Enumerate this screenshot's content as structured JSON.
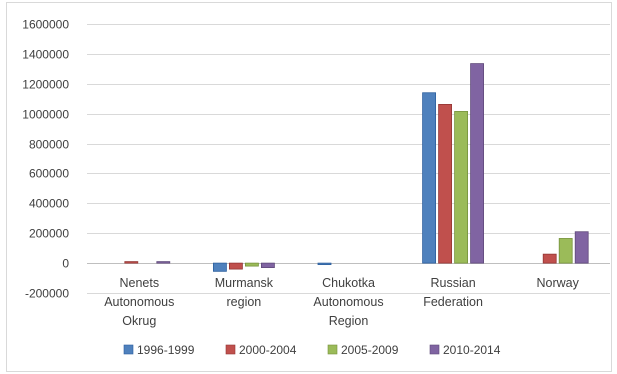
{
  "chart_data": {
    "type": "bar",
    "title": "",
    "xlabel": "",
    "ylabel": "",
    "ylim": [
      -200000,
      1600000
    ],
    "yticks": [
      -200000,
      0,
      200000,
      400000,
      600000,
      800000,
      1000000,
      1200000,
      1400000,
      1600000
    ],
    "ytick_labels": [
      "-200000",
      "0",
      "200000",
      "400000",
      "600000",
      "800000",
      "1000000",
      "1200000",
      "1400000",
      "1600000"
    ],
    "grid": true,
    "legend_position": "bottom",
    "categories": [
      [
        "Nenets",
        "Autonomous",
        "Okrug"
      ],
      [
        "Murmansk",
        "region"
      ],
      [
        "Chukotka",
        "Autonomous",
        "Region"
      ],
      [
        "Russian",
        "Federation"
      ],
      [
        "Norway"
      ]
    ],
    "series": [
      {
        "name": "1996-1999",
        "color": "#4f81bd",
        "border": "#2c5f9e",
        "values": [
          0,
          -55000,
          -8000,
          1140000,
          0
        ]
      },
      {
        "name": "2000-2004",
        "color": "#c0504d",
        "border": "#943634",
        "values": [
          5000,
          -40000,
          0,
          1062000,
          60000
        ]
      },
      {
        "name": "2005-2009",
        "color": "#9bbb59",
        "border": "#76923c",
        "values": [
          0,
          -20000,
          0,
          1015000,
          165000
        ]
      },
      {
        "name": "2010-2014",
        "color": "#8064a2",
        "border": "#5f497a",
        "values": [
          8000,
          -30000,
          0,
          1335000,
          210000
        ]
      }
    ]
  }
}
